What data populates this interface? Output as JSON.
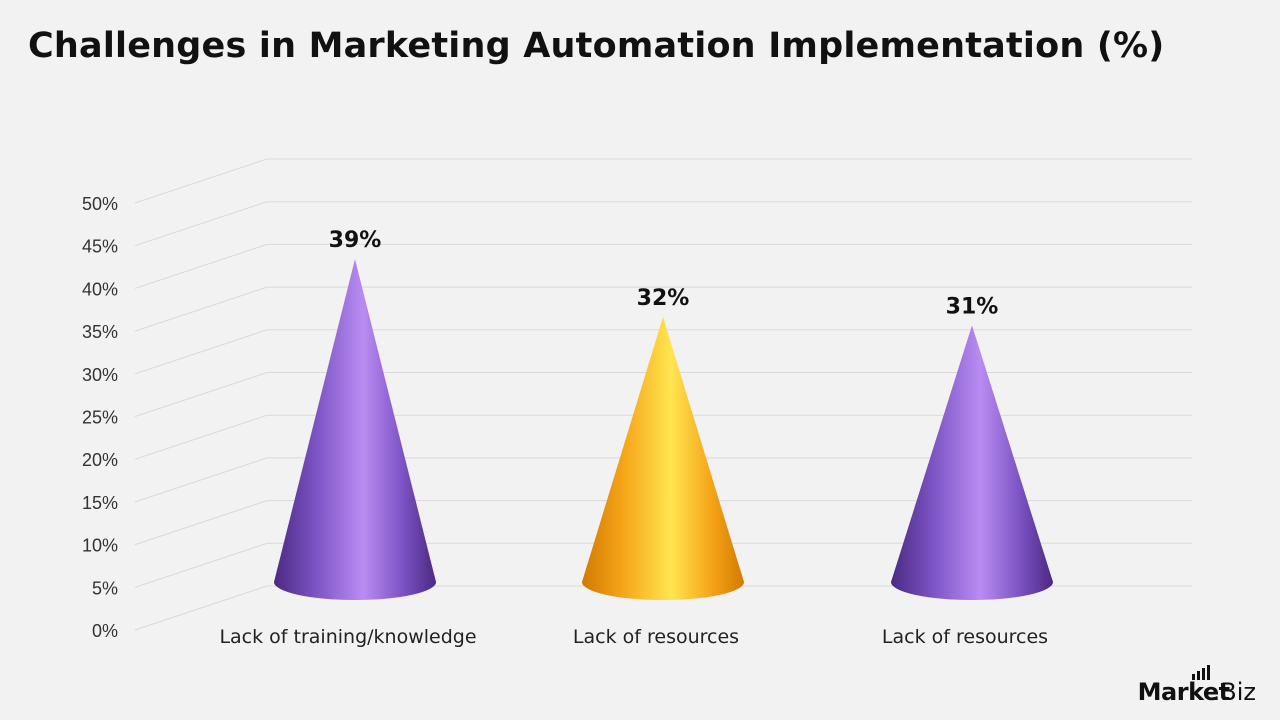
{
  "title": "Challenges in Marketing Automation Implementation (%)",
  "logo": {
    "brand": "Market",
    "tld": ".Biz"
  },
  "chart_data": {
    "type": "bar",
    "subtype": "3d-cone",
    "title": "Challenges in Marketing Automation Implementation (%)",
    "categories": [
      "Lack of training/knowledge",
      "Lack of resources",
      "Lack of resources"
    ],
    "values": [
      39,
      32,
      31
    ],
    "data_labels": [
      "39%",
      "32%",
      "31%"
    ],
    "y_ticks": [
      "0%",
      "5%",
      "10%",
      "15%",
      "20%",
      "25%",
      "30%",
      "35%",
      "40%",
      "45%",
      "50%"
    ],
    "ylim": [
      0,
      50
    ],
    "grid": true,
    "legend": "none",
    "colors": [
      "#8b5cd6",
      "#ffb020",
      "#8b5cd6"
    ]
  }
}
